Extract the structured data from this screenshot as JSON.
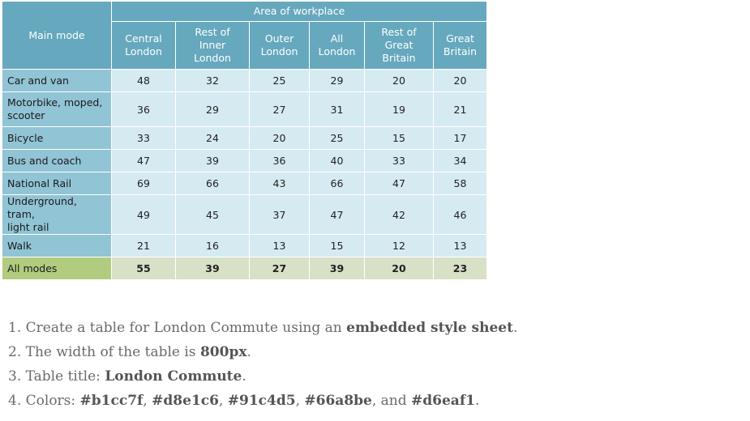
{
  "table": {
    "main_mode_header": "Main mode",
    "group_header": "Area of workplace",
    "columns": [
      {
        "line1": "Central",
        "line2": "London",
        "line3": ""
      },
      {
        "line1": "Rest of Inner",
        "line2": "London",
        "line3": ""
      },
      {
        "line1": "Outer",
        "line2": "London",
        "line3": ""
      },
      {
        "line1": "All",
        "line2": "London",
        "line3": ""
      },
      {
        "line1": "Rest of",
        "line2": "Great",
        "line3": "Britain"
      },
      {
        "line1": "Great",
        "line2": "Britain",
        "line3": ""
      }
    ],
    "rows": [
      {
        "line1": "Car and van",
        "line2": "",
        "values": [
          "48",
          "32",
          "25",
          "29",
          "20",
          "20"
        ]
      },
      {
        "line1": "Motorbike, moped,",
        "line2": "scooter",
        "values": [
          "36",
          "29",
          "27",
          "31",
          "19",
          "21"
        ]
      },
      {
        "line1": "Bicycle",
        "line2": "",
        "values": [
          "33",
          "24",
          "20",
          "25",
          "15",
          "17"
        ]
      },
      {
        "line1": "Bus and coach",
        "line2": "",
        "values": [
          "47",
          "39",
          "36",
          "40",
          "33",
          "34"
        ]
      },
      {
        "line1": "National Rail",
        "line2": "",
        "values": [
          "69",
          "66",
          "43",
          "66",
          "47",
          "58"
        ]
      },
      {
        "line1": "Underground, tram,",
        "line2": "light rail",
        "values": [
          "49",
          "45",
          "37",
          "47",
          "42",
          "46"
        ]
      },
      {
        "line1": "Walk",
        "line2": "",
        "values": [
          "21",
          "16",
          "13",
          "15",
          "12",
          "13"
        ]
      }
    ],
    "total": {
      "line1": "All modes",
      "values": [
        "55",
        "39",
        "27",
        "39",
        "20",
        "23"
      ]
    }
  },
  "instructions": {
    "i1": {
      "num": "1.",
      "pre": "Create a table for London Commute using an ",
      "bold": "embedded style sheet",
      "post": "."
    },
    "i2": {
      "num": "2.",
      "pre": "The width of the table is ",
      "bold": "800px",
      "post": "."
    },
    "i3": {
      "num": "3.",
      "pre": "Table title: ",
      "bold": "London Commute",
      "post": "."
    },
    "i4": {
      "num": "4.",
      "pre": "Colors: ",
      "c1": "#b1cc7f",
      "s1": ", ",
      "c2": "#d8e1c6",
      "s2": ", ",
      "c3": "#91c4d5",
      "s3": ", ",
      "c4": "#66a8be",
      "s4": ", and ",
      "c5": "#d6eaf1",
      "post": "."
    }
  },
  "colors": {
    "header": "#66a8be",
    "row_label": "#91c4d5",
    "cell": "#d6eaf1",
    "total_label": "#b1cc7f",
    "total_cell": "#d8e1c6"
  }
}
